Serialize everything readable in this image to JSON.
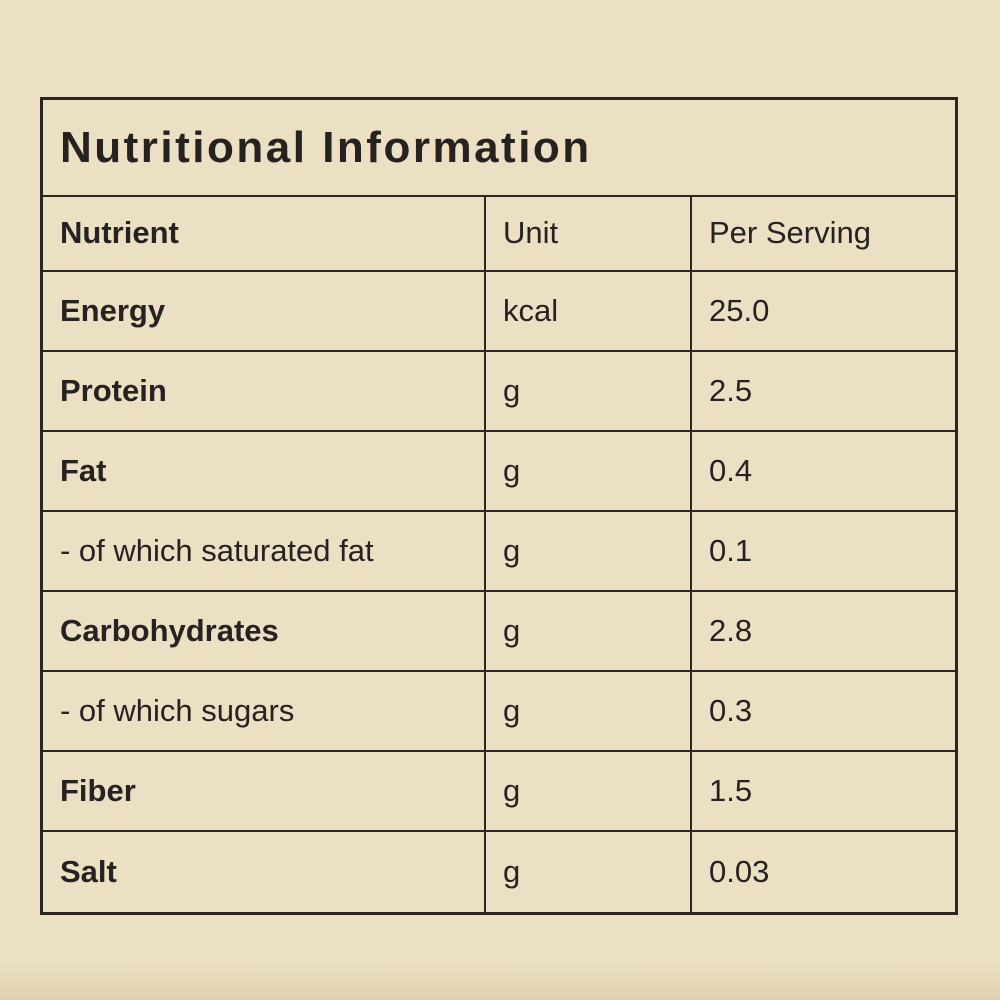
{
  "colors": {
    "background": "#ece0c4",
    "line": "#2b2620",
    "text": "#262220"
  },
  "table": {
    "title": "Nutritional Information",
    "headers": {
      "nutrient": "Nutrient",
      "unit": "Unit",
      "per_serving": "Per Serving"
    },
    "rows": [
      {
        "nutrient": "Energy",
        "unit": "kcal",
        "value": "25.0"
      },
      {
        "nutrient": "Protein",
        "unit": "g",
        "value": "2.5"
      },
      {
        "nutrient": "Fat",
        "unit": "g",
        "value": "0.4"
      },
      {
        "nutrient": "- of which saturated fat",
        "unit": "g",
        "value": "0.1"
      },
      {
        "nutrient": "Carbohydrates",
        "unit": "g",
        "value": "2.8"
      },
      {
        "nutrient": "- of which sugars",
        "unit": "g",
        "value": "0.3"
      },
      {
        "nutrient": "Fiber",
        "unit": "g",
        "value": "1.5"
      },
      {
        "nutrient": "Salt",
        "unit": "g",
        "value": "0.03"
      }
    ]
  }
}
